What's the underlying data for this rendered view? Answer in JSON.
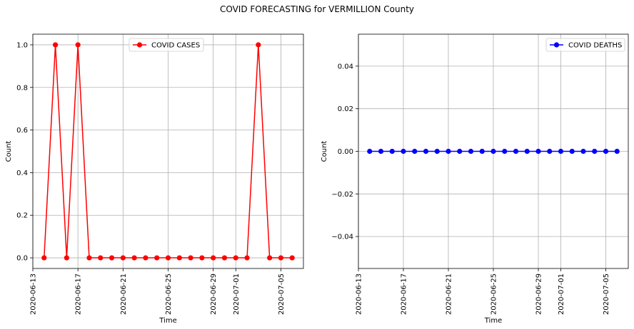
{
  "title": "COVID FORECASTING for VERMILLION County",
  "chart_data": [
    {
      "type": "line",
      "xlabel": "Time",
      "ylabel": "Count",
      "legend": "top-center",
      "grid": true,
      "xlim": [
        "2020-06-13",
        "2020-07-07"
      ],
      "ylim": [
        -0.05,
        1.05
      ],
      "xticks": [
        "2020-06-13",
        "2020-06-17",
        "2020-06-21",
        "2020-06-25",
        "2020-06-29",
        "2020-07-01",
        "2020-07-05"
      ],
      "yticks": [
        "0.0",
        "0.2",
        "0.4",
        "0.6",
        "0.8",
        "1.0"
      ],
      "x": [
        "2020-06-14",
        "2020-06-15",
        "2020-06-16",
        "2020-06-17",
        "2020-06-18",
        "2020-06-19",
        "2020-06-20",
        "2020-06-21",
        "2020-06-22",
        "2020-06-23",
        "2020-06-24",
        "2020-06-25",
        "2020-06-26",
        "2020-06-27",
        "2020-06-28",
        "2020-06-29",
        "2020-06-30",
        "2020-07-01",
        "2020-07-02",
        "2020-07-03",
        "2020-07-04",
        "2020-07-05",
        "2020-07-06"
      ],
      "series": [
        {
          "name": "COVID CASES",
          "color": "#ff0000",
          "values": [
            0,
            1,
            0,
            1,
            0,
            0,
            0,
            0,
            0,
            0,
            0,
            0,
            0,
            0,
            0,
            0,
            0,
            0,
            0,
            1,
            0,
            0,
            0
          ]
        }
      ]
    },
    {
      "type": "line",
      "xlabel": "Time",
      "ylabel": "Count",
      "legend": "top-right",
      "grid": true,
      "xlim": [
        "2020-06-13",
        "2020-07-07"
      ],
      "ylim": [
        -0.055,
        0.055
      ],
      "xticks": [
        "2020-06-13",
        "2020-06-17",
        "2020-06-21",
        "2020-06-25",
        "2020-06-29",
        "2020-07-01",
        "2020-07-05"
      ],
      "yticks": [
        "−0.04",
        "−0.02",
        "0.00",
        "0.02",
        "0.04"
      ],
      "x": [
        "2020-06-14",
        "2020-06-15",
        "2020-06-16",
        "2020-06-17",
        "2020-06-18",
        "2020-06-19",
        "2020-06-20",
        "2020-06-21",
        "2020-06-22",
        "2020-06-23",
        "2020-06-24",
        "2020-06-25",
        "2020-06-26",
        "2020-06-27",
        "2020-06-28",
        "2020-06-29",
        "2020-06-30",
        "2020-07-01",
        "2020-07-02",
        "2020-07-03",
        "2020-07-04",
        "2020-07-05",
        "2020-07-06"
      ],
      "series": [
        {
          "name": "COVID DEATHS",
          "color": "#0000ff",
          "values": [
            0,
            0,
            0,
            0,
            0,
            0,
            0,
            0,
            0,
            0,
            0,
            0,
            0,
            0,
            0,
            0,
            0,
            0,
            0,
            0,
            0,
            0,
            0
          ]
        }
      ]
    }
  ]
}
